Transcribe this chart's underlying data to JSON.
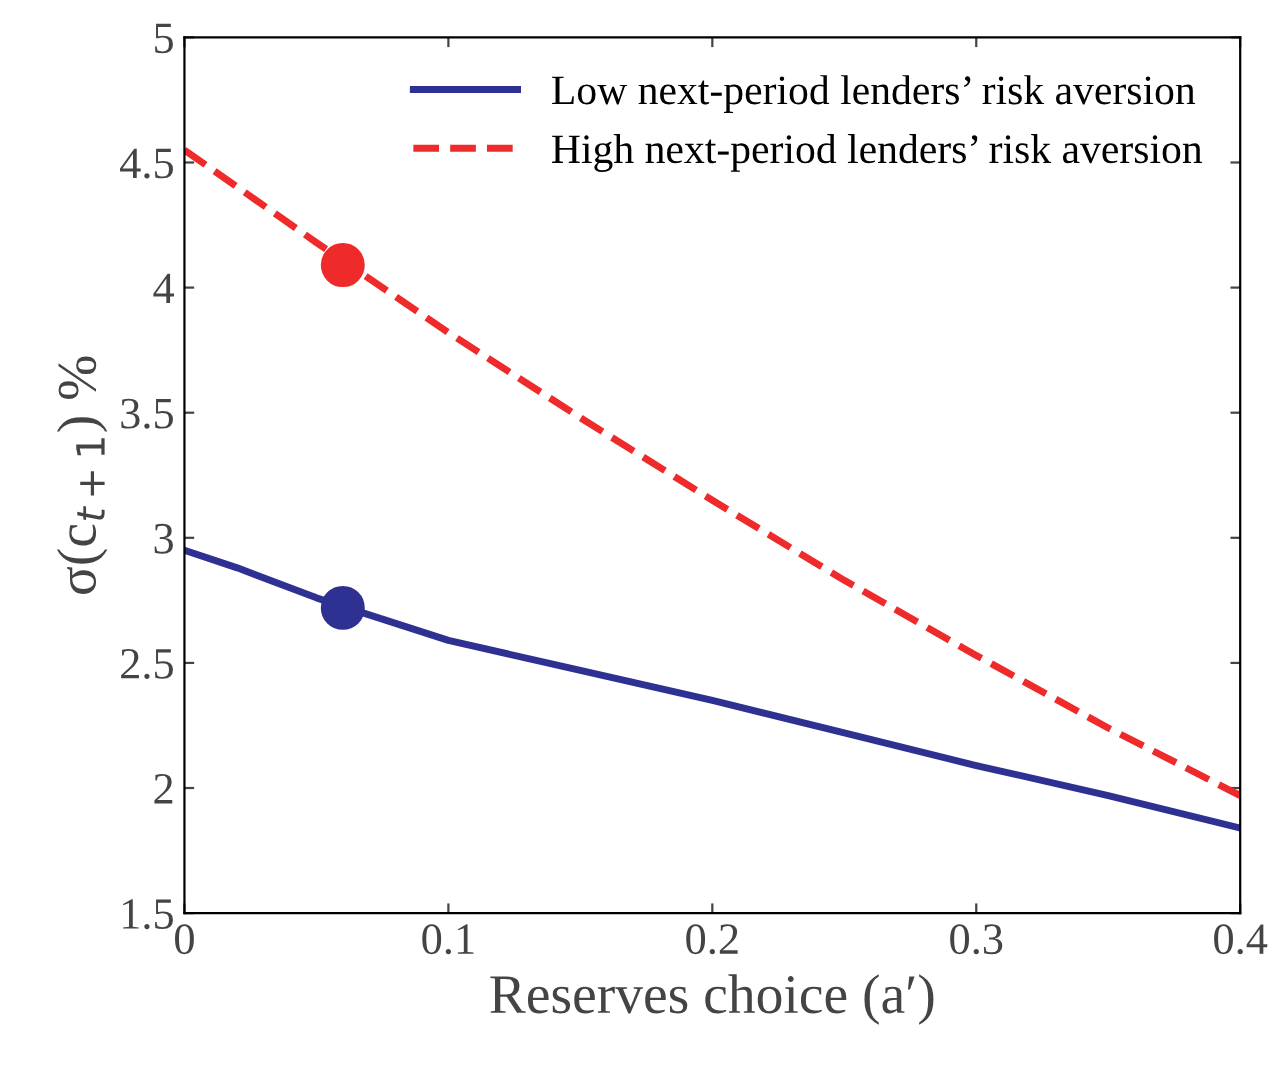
{
  "chart_data": {
    "type": "line",
    "xlabel": "Reserves choice (a′)",
    "ylabel": "σ(c$_{t+1}$) %",
    "xlim": [
      0,
      0.4
    ],
    "xticks": [
      0,
      0.1,
      0.2,
      0.3,
      0.4
    ],
    "ylim": [
      1.5,
      5
    ],
    "yticks": [
      1.5,
      2,
      2.5,
      3,
      3.5,
      4,
      4.5,
      5
    ],
    "grid": false,
    "legend": "top right",
    "series": [
      {
        "name": "Low next-period lenders’ risk aversion",
        "color": "#2e3192",
        "line_style": "solid",
        "marker": "none",
        "x": [
          0,
          0.02,
          0.05,
          0.1,
          0.15,
          0.2,
          0.25,
          0.3,
          0.35,
          0.4
        ],
        "values": [
          2.95,
          2.88,
          2.76,
          2.59,
          2.47,
          2.35,
          2.22,
          2.09,
          1.97,
          1.84
        ]
      },
      {
        "name": "High next-period lenders’ risk aversion",
        "color": "#ee2a2a",
        "line_style": "dashed",
        "marker": "none",
        "x": [
          0,
          0.05,
          0.1,
          0.15,
          0.2,
          0.25,
          0.3,
          0.35,
          0.4
        ],
        "values": [
          4.55,
          4.18,
          3.82,
          3.48,
          3.15,
          2.83,
          2.53,
          2.24,
          1.97
        ]
      },
      {
        "type": "scatter",
        "color": "#2e3192",
        "marker": "circle",
        "x": [
          0.06
        ],
        "values": [
          2.72
        ]
      },
      {
        "type": "scatter",
        "color": "#ee2a2a",
        "marker": "circle",
        "x": [
          0.06
        ],
        "values": [
          4.09
        ]
      }
    ]
  }
}
